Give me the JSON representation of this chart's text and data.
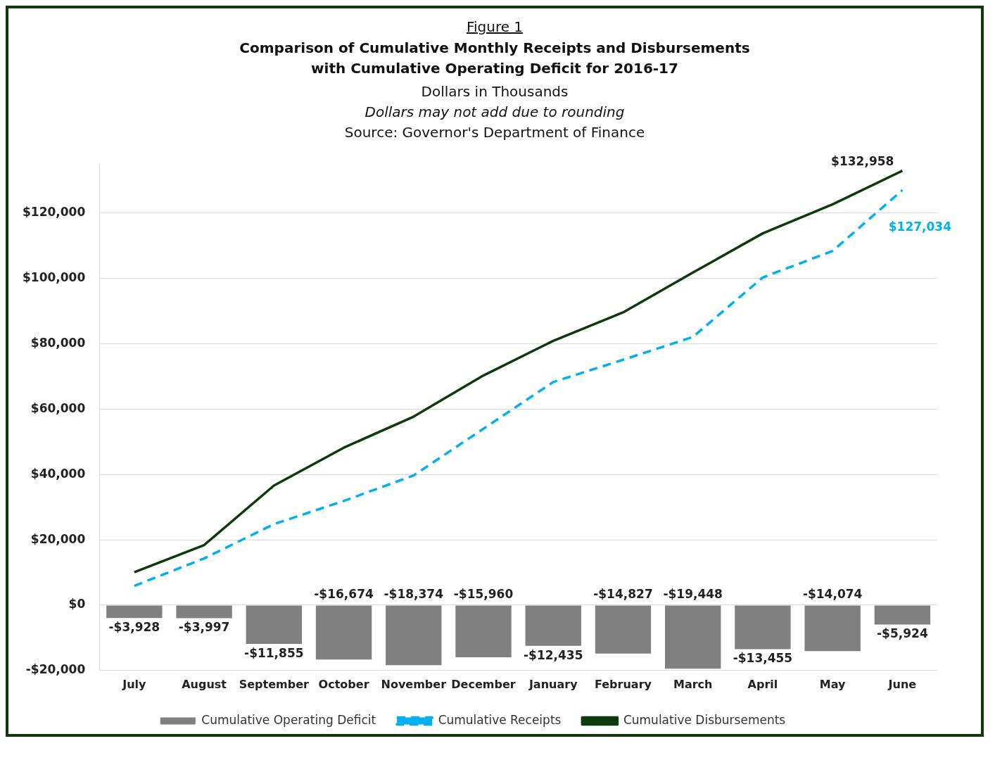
{
  "chart_data": {
    "type": "bar",
    "title": "Figure 1",
    "subtitle": "Comparison of Cumulative Monthly Receipts and Disbursements with Cumulative Operating Deficit for 2016-17",
    "annotations": [
      "Dollars in Thousands",
      "Dollars may not add due to rounding",
      "Source: Governor's Department of Finance"
    ],
    "categories": [
      "July",
      "August",
      "September",
      "October",
      "November",
      "December",
      "January",
      "February",
      "March",
      "April",
      "May",
      "June"
    ],
    "series": [
      {
        "name": "Cumulative Operating Deficit",
        "color": "#808080",
        "values": [
          -3928,
          -3997,
          -11855,
          -16674,
          -18374,
          -15960,
          -12435,
          -14827,
          -19448,
          -13455,
          -14074,
          -5924
        ],
        "value_labels": [
          "-$3,928",
          "-$3,997",
          "-$11,855",
          "-$16,674",
          "-$18,374",
          "-$15,960",
          "-$12,435",
          "-$14,827",
          "-$19,448",
          "-$13,455",
          "-$14,074",
          "-$5,924"
        ]
      },
      {
        "name": "Cumulative Receipts",
        "type": "line",
        "color": "#00b0f0",
        "line_style": "dashed",
        "values": [
          5900,
          14300,
          24800,
          31900,
          39700,
          54000,
          68300,
          75100,
          82100,
          100300,
          108400,
          127034
        ],
        "value_labels": [
          null,
          null,
          null,
          null,
          null,
          null,
          null,
          null,
          null,
          null,
          null,
          "$127,034"
        ]
      },
      {
        "name": "Cumulative Disbursements",
        "type": "line",
        "color": "#0b3a0b",
        "line_style": "solid",
        "values": [
          10100,
          18400,
          36600,
          48200,
          57700,
          70300,
          80900,
          89600,
          101800,
          113800,
          122700,
          132958
        ],
        "value_labels": [
          null,
          null,
          null,
          null,
          null,
          null,
          null,
          null,
          null,
          null,
          null,
          "$132,958"
        ]
      }
    ],
    "yticks": [
      {
        "value": -20000,
        "label": "-$20,000"
      },
      {
        "value": 0,
        "label": "$0"
      },
      {
        "value": 20000,
        "label": "$20,000"
      },
      {
        "value": 40000,
        "label": "$40,000"
      },
      {
        "value": 60000,
        "label": "$60,000"
      },
      {
        "value": 80000,
        "label": "$80,000"
      },
      {
        "value": 100000,
        "label": "$100,000"
      },
      {
        "value": 120000,
        "label": "$120,000"
      }
    ],
    "ylim": [
      -20000,
      135000
    ],
    "grid": "y",
    "legend": "bottom",
    "marker": "none"
  }
}
